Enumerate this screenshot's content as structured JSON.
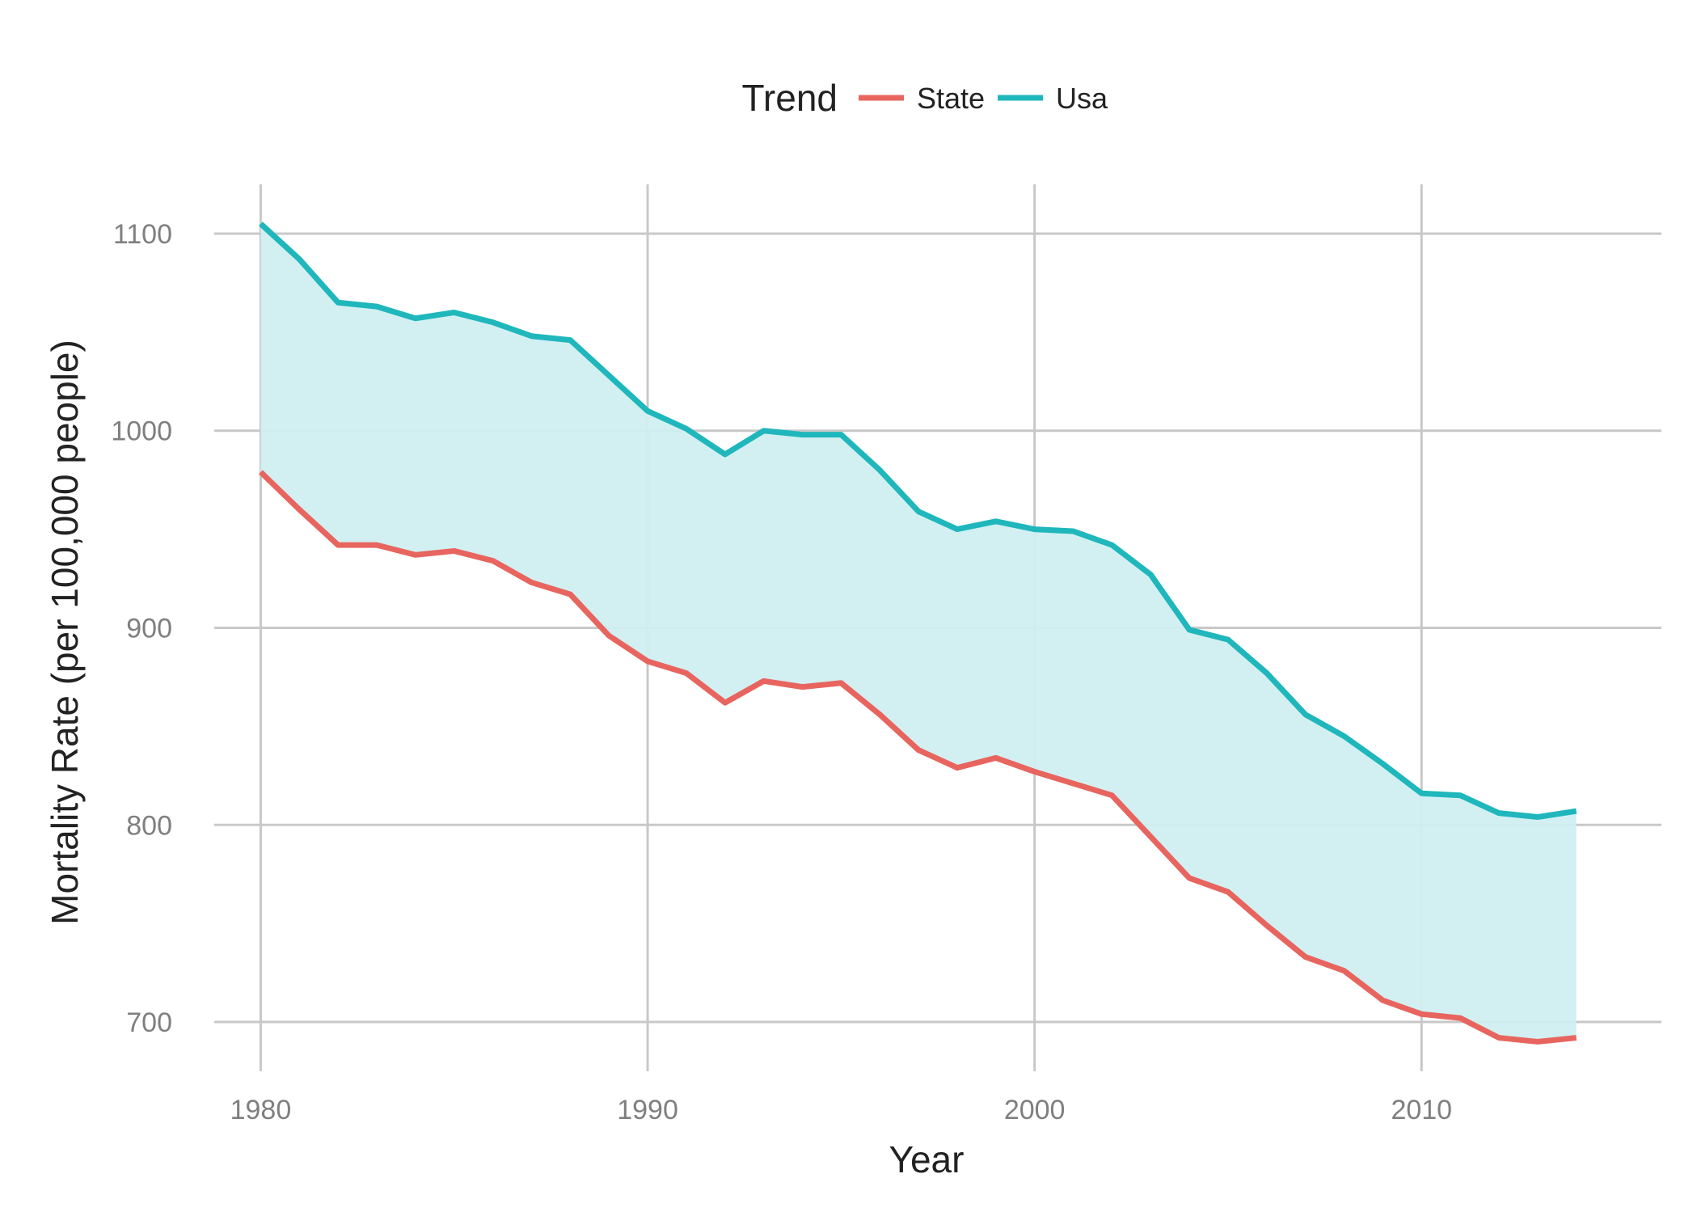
{
  "chart_data": {
    "type": "line",
    "xlabel": "Year",
    "ylabel": "Mortality Rate (per 100,000 people)",
    "xlim": [
      1978.8,
      2016.2
    ],
    "ylim": [
      675,
      1125
    ],
    "x_ticks": [
      1980,
      1990,
      2000,
      2010
    ],
    "y_ticks": [
      700,
      800,
      900,
      1000,
      1100
    ],
    "grid": true,
    "legend": {
      "title": "Trend",
      "position": "top"
    },
    "ribbon": {
      "between": [
        "State",
        "Usa"
      ],
      "color": "#d0eff1"
    },
    "x": [
      1980,
      1981,
      1982,
      1983,
      1984,
      1985,
      1986,
      1987,
      1988,
      1989,
      1990,
      1991,
      1992,
      1993,
      1994,
      1995,
      1996,
      1997,
      1998,
      1999,
      2000,
      2001,
      2002,
      2003,
      2004,
      2005,
      2006,
      2007,
      2008,
      2009,
      2010,
      2011,
      2012,
      2013,
      2014
    ],
    "series": [
      {
        "name": "State",
        "color": "#e8655f",
        "values": [
          979,
          960,
          942,
          942,
          937,
          939,
          934,
          923,
          917,
          896,
          883,
          877,
          862,
          873,
          870,
          872,
          856,
          838,
          829,
          834,
          827,
          821,
          815,
          794,
          773,
          766,
          749,
          733,
          726,
          711,
          704,
          702,
          692,
          690,
          692
        ]
      },
      {
        "name": "Usa",
        "color": "#1fb7bc",
        "values": [
          1105,
          1087,
          1065,
          1063,
          1057,
          1060,
          1055,
          1048,
          1046,
          1028,
          1010,
          1001,
          988,
          1000,
          998,
          998,
          980,
          959,
          950,
          954,
          950,
          949,
          942,
          927,
          899,
          894,
          877,
          856,
          845,
          831,
          816,
          815,
          806,
          804,
          807
        ]
      }
    ]
  }
}
